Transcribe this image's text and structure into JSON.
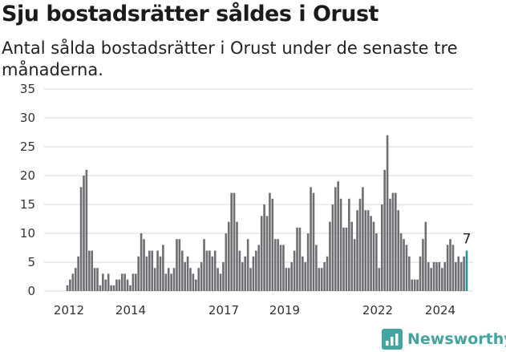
{
  "chart_data": {
    "type": "bar",
    "title": "Sju bostadsrätter såldes i Orust",
    "subtitle": "Antal sålda bostadsrätter i Orust under de senaste tre månaderna.",
    "yticks": [
      0,
      5,
      10,
      15,
      20,
      25,
      30,
      35
    ],
    "ylim": [
      0,
      35
    ],
    "xticks": [
      "2012",
      "2014",
      "2017",
      "2019",
      "2022",
      "2024"
    ],
    "grid": true,
    "last_value_label": "7",
    "colors": {
      "bar": "#6f6e73",
      "highlight": "#1a9a93",
      "grid": "#d9d9d9"
    },
    "values": [
      1,
      2,
      3,
      4,
      6,
      18,
      20,
      21,
      7,
      7,
      4,
      4,
      1,
      3,
      2,
      3,
      1,
      1,
      2,
      2,
      3,
      3,
      2,
      1,
      3,
      3,
      6,
      10,
      9,
      6,
      7,
      7,
      4,
      7,
      6,
      8,
      3,
      4,
      3,
      4,
      9,
      9,
      7,
      5,
      6,
      4,
      3,
      2,
      4,
      5,
      9,
      7,
      7,
      6,
      7,
      4,
      3,
      5,
      10,
      12,
      17,
      17,
      12,
      7,
      5,
      6,
      9,
      4,
      6,
      7,
      8,
      13,
      15,
      13,
      17,
      16,
      9,
      9,
      8,
      8,
      4,
      4,
      5,
      7,
      11,
      11,
      6,
      5,
      10,
      18,
      17,
      8,
      4,
      4,
      5,
      6,
      12,
      15,
      18,
      19,
      16,
      11,
      11,
      16,
      12,
      9,
      14,
      16,
      18,
      14,
      14,
      13,
      12,
      10,
      4,
      15,
      21,
      27,
      16,
      17,
      17,
      14,
      10,
      9,
      8,
      6,
      2,
      2,
      2,
      6,
      9,
      12,
      5,
      4,
      5,
      5,
      5,
      4,
      5,
      8,
      9,
      8,
      5,
      6,
      5,
      6,
      7
    ]
  },
  "brand": {
    "name": "Newsworthy",
    "icon": "newsworthy-logo-icon"
  }
}
